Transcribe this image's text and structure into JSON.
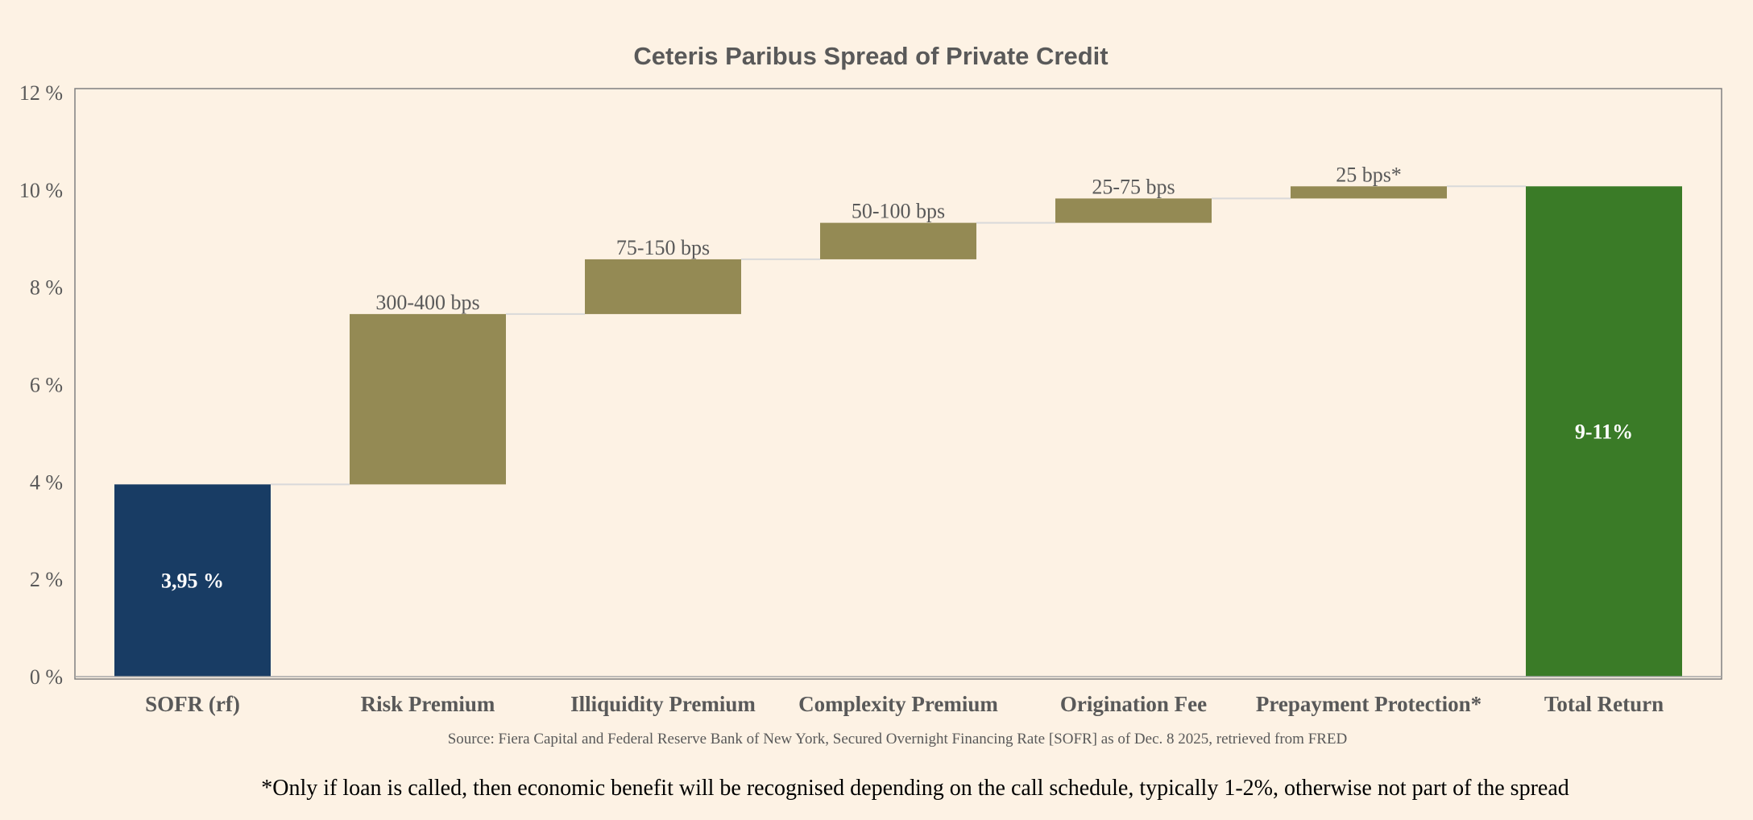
{
  "chart_data": {
    "type": "waterfall",
    "title": "Ceteris Paribus Spread of Private Credit",
    "xlabel": "",
    "ylabel": "",
    "ylim": [
      0,
      12
    ],
    "yticks": [
      0,
      2,
      4,
      6,
      8,
      10,
      12
    ],
    "ytick_labels": [
      "0 %",
      "2 %",
      "4 %",
      "6 %",
      "8 %",
      "10 %",
      "12 %"
    ],
    "grid": false,
    "colors": {
      "base": "#183c64",
      "increment": "#948a54",
      "total": "#3a7b27",
      "connector": "#d9d9d9"
    },
    "bars": [
      {
        "category": "SOFR (rf)",
        "kind": "base",
        "start": 0,
        "end": 3.95,
        "label": "3,95 %",
        "label_position": "inside"
      },
      {
        "category": "Risk Premium",
        "kind": "increment",
        "start": 3.95,
        "end": 7.45,
        "label": "300-400  bps",
        "label_position": "above"
      },
      {
        "category": "Illiquidity Premium",
        "kind": "increment",
        "start": 7.45,
        "end": 8.575,
        "label": "75-150  bps",
        "label_position": "above"
      },
      {
        "category": "Complexity Premium",
        "kind": "increment",
        "start": 8.575,
        "end": 9.325,
        "label": "50-100  bps",
        "label_position": "above"
      },
      {
        "category": "Origination Fee",
        "kind": "increment",
        "start": 9.325,
        "end": 9.825,
        "label": "25-75  bps",
        "label_position": "above"
      },
      {
        "category": "Prepayment Protection*",
        "kind": "increment",
        "start": 9.825,
        "end": 10.075,
        "label": "25  bps*",
        "label_position": "above"
      },
      {
        "category": "Total Return",
        "kind": "total",
        "start": 0,
        "end": 10.075,
        "label": "9-11%",
        "label_position": "inside"
      }
    ]
  },
  "source_note": "Source: Fiera Capital and Federal Reserve Bank of New York, Secured Overnight Financing Rate [SOFR] as of Dec. 8 2025, retrieved from FRED",
  "footnote": "*Only if loan is called, then economic benefit will be recognised depending on the call schedule, typically 1-2%, otherwise not part of the spread"
}
